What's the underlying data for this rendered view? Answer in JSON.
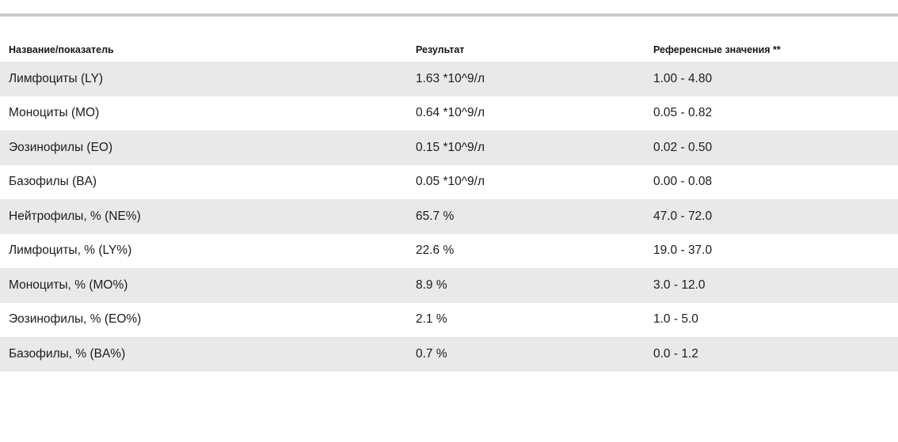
{
  "page": {
    "background_color": "#ffffff",
    "top_divider_color": "#cbcbcb",
    "row_stripe_color": "#e9e9e9",
    "text_color": "#1c1c1c"
  },
  "table": {
    "columns": [
      "Название/показатель",
      "Результат",
      "Референсные значения **"
    ],
    "rows": [
      {
        "name": "Лимфоциты (LY)",
        "result": "1.63 *10^9/л",
        "reference": "1.00 - 4.80"
      },
      {
        "name": "Моноциты (MO)",
        "result": "0.64 *10^9/л",
        "reference": "0.05 - 0.82"
      },
      {
        "name": "Эозинофилы (EO)",
        "result": "0.15 *10^9/л",
        "reference": "0.02 - 0.50"
      },
      {
        "name": "Базофилы (BA)",
        "result": "0.05 *10^9/л",
        "reference": "0.00 - 0.08"
      },
      {
        "name": "Нейтрофилы, % (NE%)",
        "result": "65.7 %",
        "reference": "47.0 - 72.0"
      },
      {
        "name": "Лимфоциты, % (LY%)",
        "result": "22.6 %",
        "reference": "19.0 - 37.0"
      },
      {
        "name": "Моноциты, % (MO%)",
        "result": "8.9 %",
        "reference": "3.0 - 12.0"
      },
      {
        "name": "Эозинофилы, % (EO%)",
        "result": "2.1 %",
        "reference": "1.0 - 5.0"
      },
      {
        "name": "Базофилы, % (BA%)",
        "result": "0.7 %",
        "reference": "0.0 - 1.2"
      }
    ]
  }
}
